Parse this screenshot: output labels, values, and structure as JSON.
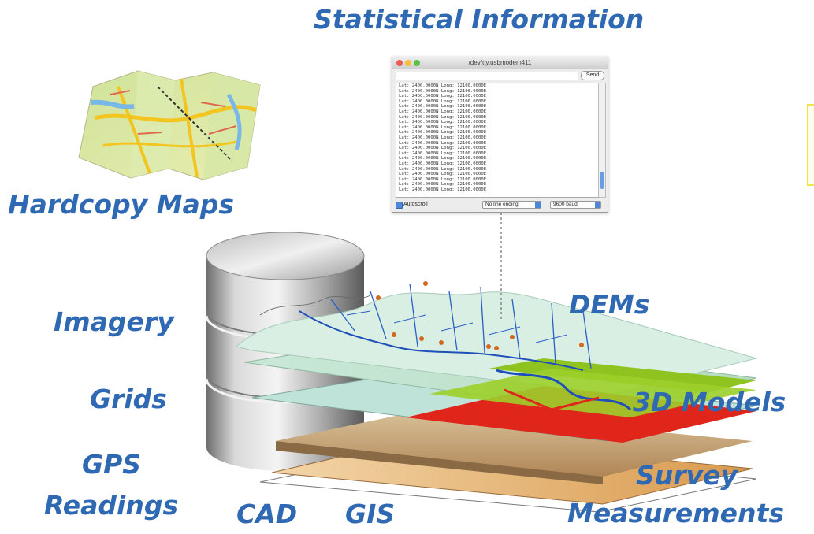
{
  "labels": {
    "statistical_information": "Statistical Information",
    "hardcopy_maps": "Hardcopy Maps",
    "imagery": "Imagery",
    "grids": "Grids",
    "gps_readings_line1": "GPS",
    "gps_readings_line2": "Readings",
    "cad": "CAD",
    "gis": "GIS",
    "dems": "DEMs",
    "models_3d": "3D Models",
    "survey_line1": "Survey",
    "survey_line2": "Measurements"
  },
  "serial_monitor": {
    "title": "/dev/tty.usbmodem411",
    "send_label": "Send",
    "lines": [
      "Lat: 2400.0000N Long: 12100.0000E",
      "Lat: 2400.0000N Long: 12100.0000E",
      "Lat: 2400.0000N Long: 12100.0000E",
      "Lat: 2400.0000N Long: 12100.0000E",
      "Lat: 2400.0000N Long: 12100.0000E",
      "Lat: 2400.0000N Long: 12100.0000E",
      "Lat: 2400.0000N Long: 12100.0000E",
      "Lat: 2400.0000N Long: 12100.0000E",
      "Lat: 2400.0000N Long: 12100.0000E",
      "Lat: 2400.0000N Long: 12100.0000E",
      "Lat: 2400.0000N Long: 12100.0000E",
      "Lat: 2400.0000N Long: 12100.0000E",
      "Lat: 2400.0000N Long: 12100.0000E",
      "Lat: 2400.0000N Long: 12100.0000E",
      "Lat: 2400.0000N Long: 12100.0000E",
      "Lat: 2400.0000N Long: 12100.0000E",
      "Lat: 2400.0000N Long: 12100.0000E",
      "Lat: 2400.0000N Long: 12100.0000E",
      "Lat: 2400.0000N Long: 12100.0000E",
      "Lat: 2400.0000N Long: 12100.0000E",
      "Lat: 2400.0000N Long: 12100.0000E"
    ],
    "autoscroll_label": "Autoscroll",
    "line_ending": "No line ending",
    "baud_rate": "9600 baud"
  },
  "colors": {
    "label_blue": "#2f69b3",
    "river_blue": "#1f4fb8",
    "raster_red": "#e0251b",
    "raster_green": "#8fc31f"
  }
}
